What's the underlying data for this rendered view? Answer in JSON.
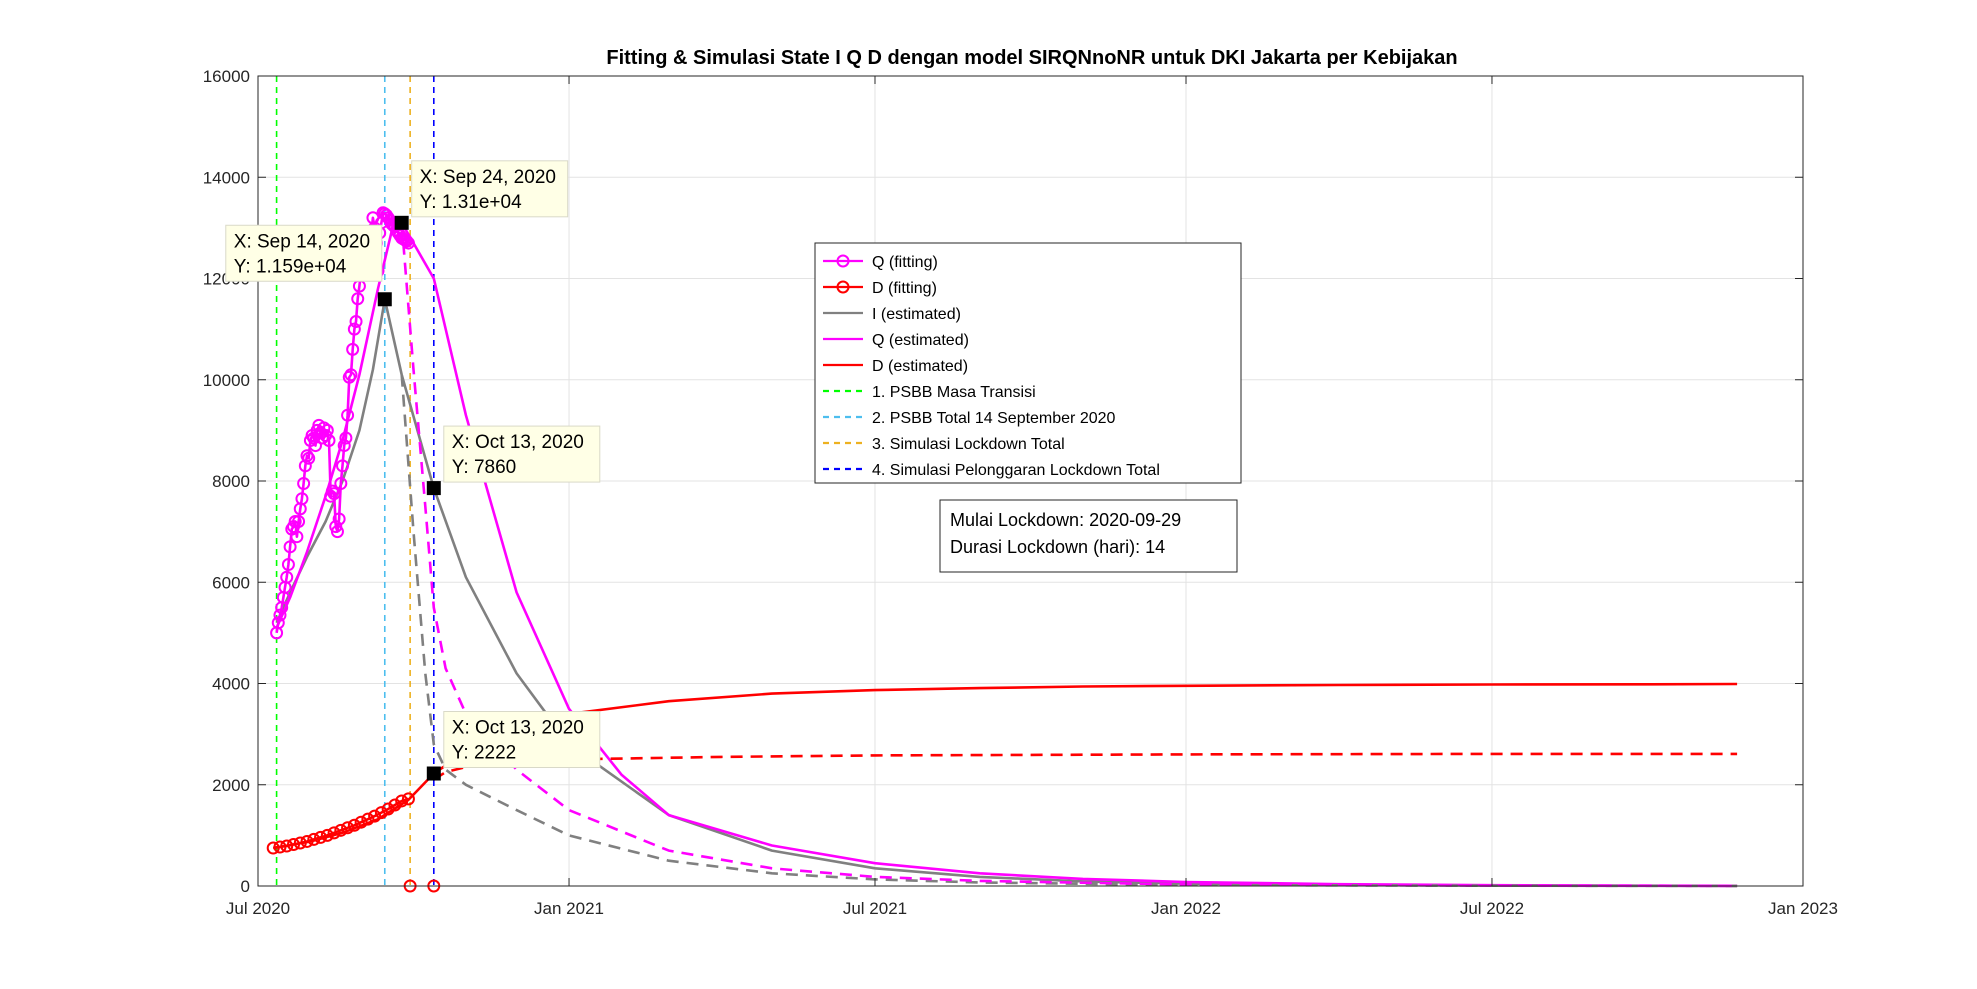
{
  "chart_data": {
    "type": "line",
    "title": "Fitting & Simulasi State  I Q D dengan model SIRQNnoNR untuk DKI Jakarta per Kebijakan",
    "xlabel": "",
    "ylabel": "",
    "x_axis_type": "date",
    "xlim": [
      "2020-07-01",
      "2023-01-01"
    ],
    "ylim": [
      0,
      16000
    ],
    "grid": true,
    "legend_position": "right",
    "x_ticks": [
      {
        "date": "2020-07-01",
        "label": "Jul 2020"
      },
      {
        "date": "2021-01-01",
        "label": "Jan 2021"
      },
      {
        "date": "2021-07-01",
        "label": "Jul 2021"
      },
      {
        "date": "2022-01-01",
        "label": "Jan 2022"
      },
      {
        "date": "2022-07-01",
        "label": "Jul 2022"
      },
      {
        "date": "2023-01-01",
        "label": "Jan 2023"
      }
    ],
    "y_ticks": [
      {
        "value": 0,
        "label": "0"
      },
      {
        "value": 2000,
        "label": "2000"
      },
      {
        "value": 4000,
        "label": "4000"
      },
      {
        "value": 6000,
        "label": "6000"
      },
      {
        "value": 8000,
        "label": "8000"
      },
      {
        "value": 10000,
        "label": "10000"
      },
      {
        "value": 12000,
        "label": "12000"
      },
      {
        "value": 14000,
        "label": "14000"
      },
      {
        "value": 16000,
        "label": "16000"
      }
    ],
    "series": [
      {
        "name": "Q (fitting)",
        "color": "#ff00ff",
        "style": "solid",
        "marker": "circle",
        "x": [
          "2020-07-12",
          "2020-07-13",
          "2020-07-14",
          "2020-07-15",
          "2020-07-16",
          "2020-07-17",
          "2020-07-18",
          "2020-07-19",
          "2020-07-20",
          "2020-07-21",
          "2020-07-22",
          "2020-07-23",
          "2020-07-24",
          "2020-07-25",
          "2020-07-26",
          "2020-07-27",
          "2020-07-28",
          "2020-07-29",
          "2020-07-30",
          "2020-07-31",
          "2020-08-01",
          "2020-08-02",
          "2020-08-03",
          "2020-08-04",
          "2020-08-05",
          "2020-08-06",
          "2020-08-07",
          "2020-08-08",
          "2020-08-09",
          "2020-08-10",
          "2020-08-11",
          "2020-08-12",
          "2020-08-13",
          "2020-08-14",
          "2020-08-15",
          "2020-08-16",
          "2020-08-17",
          "2020-08-18",
          "2020-08-19",
          "2020-08-20",
          "2020-08-21",
          "2020-08-22",
          "2020-08-23",
          "2020-08-24",
          "2020-08-25",
          "2020-08-26",
          "2020-08-27",
          "2020-08-28",
          "2020-08-29",
          "2020-08-30",
          "2020-08-31",
          "2020-09-01",
          "2020-09-02",
          "2020-09-03",
          "2020-09-04",
          "2020-09-05",
          "2020-09-06",
          "2020-09-07",
          "2020-09-08",
          "2020-09-09",
          "2020-09-10",
          "2020-09-11",
          "2020-09-12",
          "2020-09-13",
          "2020-09-14",
          "2020-09-15",
          "2020-09-16",
          "2020-09-17",
          "2020-09-18",
          "2020-09-19",
          "2020-09-20",
          "2020-09-21",
          "2020-09-22",
          "2020-09-23",
          "2020-09-24",
          "2020-09-25",
          "2020-09-26",
          "2020-09-27",
          "2020-09-28"
        ],
        "y": [
          5000,
          5200,
          5350,
          5500,
          5700,
          5900,
          6100,
          6350,
          6700,
          7050,
          7100,
          7200,
          6900,
          7200,
          7450,
          7650,
          7950,
          8300,
          8500,
          8450,
          8800,
          8900,
          8850,
          8700,
          9000,
          9100,
          8950,
          8850,
          9050,
          8900,
          9000,
          8800,
          7700,
          7800,
          7750,
          7100,
          7000,
          7250,
          7950,
          8300,
          8700,
          8850,
          9300,
          10050,
          10100,
          10600,
          11000,
          11150,
          11600,
          11850,
          12150,
          12450,
          12200,
          12250,
          12700,
          12650,
          12900,
          13200,
          13000,
          12700,
          12150,
          12900,
          13100,
          13300,
          13280,
          13250,
          13200,
          13150,
          13080,
          13050,
          13020,
          12950,
          12900,
          12850,
          12800,
          12780,
          12760,
          12740,
          12700
        ]
      },
      {
        "name": "D (fitting)",
        "color": "#ff0000",
        "style": "solid",
        "marker": "circle",
        "x": [
          "2020-07-10",
          "2020-07-14",
          "2020-07-18",
          "2020-07-22",
          "2020-07-26",
          "2020-07-30",
          "2020-08-03",
          "2020-08-07",
          "2020-08-11",
          "2020-08-15",
          "2020-08-19",
          "2020-08-23",
          "2020-08-27",
          "2020-08-31",
          "2020-09-04",
          "2020-09-08",
          "2020-09-12",
          "2020-09-16",
          "2020-09-20",
          "2020-09-24",
          "2020-09-28"
        ],
        "y": [
          750,
          770,
          790,
          820,
          850,
          880,
          920,
          960,
          1000,
          1050,
          1100,
          1150,
          1200,
          1260,
          1320,
          1380,
          1450,
          1520,
          1600,
          1680,
          1720
        ]
      },
      {
        "name": "I (estimated)",
        "color": "#808080",
        "style": "solid",
        "marker": "none",
        "x": [
          "2020-07-12",
          "2020-07-20",
          "2020-07-30",
          "2020-08-10",
          "2020-08-20",
          "2020-08-30",
          "2020-09-07",
          "2020-09-14",
          "2020-09-24",
          "2020-10-13",
          "2020-11-01",
          "2020-12-01",
          "2021-01-01",
          "2021-03-01",
          "2021-05-01",
          "2021-07-01",
          "2021-09-01",
          "2021-11-01",
          "2022-01-01",
          "2022-04-01",
          "2022-07-01",
          "2022-10-01",
          "2022-11-23"
        ],
        "y": [
          5200,
          5800,
          6500,
          7200,
          8000,
          9000,
          10200,
          11590,
          10100,
          7860,
          6100,
          4200,
          2800,
          1400,
          700,
          350,
          180,
          90,
          45,
          20,
          8,
          3,
          2
        ]
      },
      {
        "name": "Q (estimated)",
        "color": "#ff00ff",
        "style": "solid",
        "marker": "none",
        "x": [
          "2020-07-12",
          "2020-07-20",
          "2020-07-30",
          "2020-08-10",
          "2020-08-20",
          "2020-08-30",
          "2020-09-10",
          "2020-09-20",
          "2020-09-24",
          "2020-10-01",
          "2020-10-13",
          "2020-11-01",
          "2020-12-01",
          "2021-01-01",
          "2021-02-01",
          "2021-03-01",
          "2021-05-01",
          "2021-07-01",
          "2021-09-01",
          "2021-11-01",
          "2022-01-01",
          "2022-04-01",
          "2022-07-01",
          "2022-10-01",
          "2022-11-23"
        ],
        "y": [
          5100,
          5700,
          6600,
          7700,
          8800,
          10100,
          11800,
          13200,
          13100,
          12700,
          12000,
          9300,
          5800,
          3500,
          2200,
          1400,
          800,
          450,
          250,
          140,
          80,
          35,
          15,
          6,
          3
        ]
      },
      {
        "name": "D (estimated)",
        "color": "#ff0000",
        "style": "solid",
        "marker": "none",
        "x": [
          "2020-07-10",
          "2020-08-01",
          "2020-08-20",
          "2020-09-10",
          "2020-09-28",
          "2020-10-13",
          "2020-11-01",
          "2020-12-01",
          "2021-01-01",
          "2021-03-01",
          "2021-05-01",
          "2021-07-01",
          "2021-09-01",
          "2021-11-01",
          "2022-01-01",
          "2022-04-01",
          "2022-07-01",
          "2022-10-01",
          "2022-11-23"
        ],
        "y": [
          750,
          880,
          1050,
          1320,
          1700,
          2222,
          2650,
          3100,
          3400,
          3650,
          3800,
          3870,
          3910,
          3940,
          3955,
          3970,
          3980,
          3985,
          3990
        ]
      },
      {
        "name": "",
        "color": "#808080",
        "style": "dashed",
        "marker": "none",
        "x": [
          "2020-09-24",
          "2020-10-01",
          "2020-10-08",
          "2020-10-13",
          "2020-10-20",
          "2020-11-01",
          "2020-12-01",
          "2021-01-01",
          "2021-03-01",
          "2021-05-01",
          "2021-07-01",
          "2021-09-01",
          "2022-01-01",
          "2022-07-01",
          "2022-11-23"
        ],
        "y": [
          10100,
          7000,
          4200,
          2800,
          2300,
          2000,
          1500,
          1000,
          500,
          250,
          130,
          70,
          20,
          5,
          2
        ]
      },
      {
        "name": "",
        "color": "#ff00ff",
        "style": "dashed",
        "marker": "none",
        "x": [
          "2020-09-24",
          "2020-10-01",
          "2020-10-08",
          "2020-10-13",
          "2020-10-20",
          "2020-11-01",
          "2020-12-01",
          "2021-01-01",
          "2021-03-01",
          "2021-05-01",
          "2021-07-01",
          "2021-09-01",
          "2022-01-01",
          "2022-07-01",
          "2022-11-23"
        ],
        "y": [
          13100,
          10200,
          7500,
          5500,
          4300,
          3400,
          2300,
          1500,
          700,
          350,
          180,
          100,
          30,
          8,
          3
        ]
      },
      {
        "name": "",
        "color": "#ff0000",
        "style": "dashed",
        "marker": "none",
        "x": [
          "2020-10-13",
          "2020-10-20",
          "2020-11-01",
          "2020-12-01",
          "2021-01-01",
          "2021-04-01",
          "2021-07-01",
          "2022-01-01",
          "2022-07-01",
          "2022-11-23"
        ],
        "y": [
          2100,
          2250,
          2350,
          2450,
          2500,
          2550,
          2580,
          2600,
          2610,
          2610
        ]
      }
    ],
    "hidden_points": [
      {
        "x": "2020-09-29",
        "y": 0,
        "color": "#ff0000"
      },
      {
        "x": "2020-10-13",
        "y": 0,
        "color": "#ff0000"
      }
    ],
    "vertical_lines": [
      {
        "name": "1. PSBB Masa Transisi",
        "x": "2020-07-12",
        "color": "#00ff00"
      },
      {
        "name": "2. PSBB Total 14 September 2020",
        "x": "2020-09-14",
        "color": "#4dbeee"
      },
      {
        "name": "3. Simulasi Lockdown Total",
        "x": "2020-09-29",
        "color": "#edb120"
      },
      {
        "name": "4. Simulasi Pelonggaran Lockdown Total",
        "x": "2020-10-13",
        "color": "#0000ff"
      }
    ],
    "datatips": [
      {
        "x": "2020-09-14",
        "y": 11590,
        "line1": "X: Sep 14, 2020",
        "line2": "Y: 1.159e+04",
        "anchor": "left"
      },
      {
        "x": "2020-09-24",
        "y": 13100,
        "line1": "X: Sep 24, 2020",
        "line2": "Y: 1.31e+04",
        "anchor": "right"
      },
      {
        "x": "2020-10-13",
        "y": 7860,
        "line1": "X: Oct 13, 2020",
        "line2": "Y: 7860",
        "anchor": "right"
      },
      {
        "x": "2020-10-13",
        "y": 2222,
        "line1": "X: Oct 13, 2020",
        "line2": "Y: 2222",
        "anchor": "right"
      }
    ],
    "legend": [
      {
        "label": "Q (fitting)",
        "color": "#ff00ff",
        "style": "solid",
        "marker": "circle"
      },
      {
        "label": "D (fitting)",
        "color": "#ff0000",
        "style": "solid",
        "marker": "circle"
      },
      {
        "label": "I (estimated)",
        "color": "#808080",
        "style": "solid",
        "marker": "none"
      },
      {
        "label": "Q (estimated)",
        "color": "#ff00ff",
        "style": "solid",
        "marker": "none"
      },
      {
        "label": "D (estimated)",
        "color": "#ff0000",
        "style": "solid",
        "marker": "none"
      },
      {
        "label": "1. PSBB Masa Transisi",
        "color": "#00ff00",
        "style": "dashed",
        "marker": "none"
      },
      {
        "label": "2. PSBB Total 14 September 2020",
        "color": "#4dbeee",
        "style": "dashed",
        "marker": "none"
      },
      {
        "label": "3. Simulasi Lockdown Total",
        "color": "#edb120",
        "style": "dashed",
        "marker": "none"
      },
      {
        "label": "4. Simulasi Pelonggaran Lockdown Total",
        "color": "#0000ff",
        "style": "dashed",
        "marker": "none"
      }
    ],
    "info_box": [
      "Mulai Lockdown: 2020-09-29",
      "Durasi Lockdown (hari): 14"
    ]
  }
}
